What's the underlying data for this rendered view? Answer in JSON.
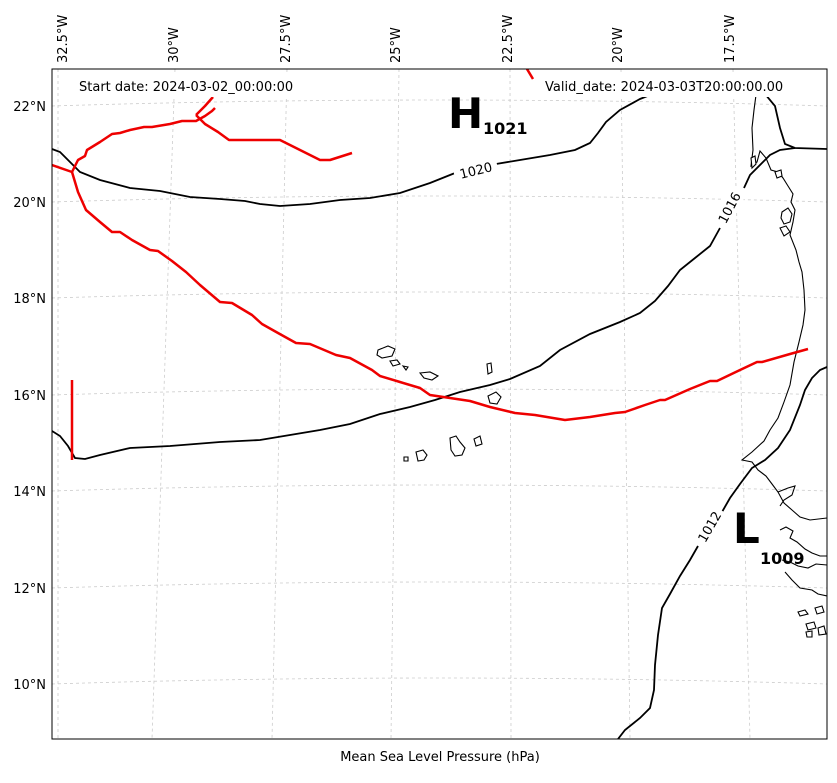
{
  "map": {
    "xlabel": "Mean Sea Level Pressure (hPa)",
    "start_date": "Start date: 2024-03-02_00:00:00",
    "valid_date": "Valid_date: 2024-03-03T20:00:00.00",
    "lon_ticks": [
      "32.5°W",
      "30°W",
      "27.5°W",
      "25°W",
      "22.5°W",
      "20°W",
      "17.5°W"
    ],
    "lat_ticks": [
      "22°N",
      "20°N",
      "18°N",
      "16°N",
      "14°N",
      "12°N",
      "10°N"
    ],
    "isobar_labels": [
      "1020",
      "1016",
      "1012"
    ],
    "high": {
      "letter": "H",
      "value": "1021"
    },
    "low": {
      "letter": "L",
      "value": "1009"
    },
    "colors": {
      "front": "#ee0000",
      "isobar": "#000000",
      "grid": "#cccccc"
    }
  }
}
